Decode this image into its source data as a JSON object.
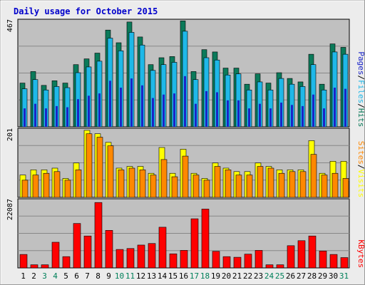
{
  "chart_data": {
    "type": "bar",
    "title": "Daily usage for October 2015",
    "categories": [
      "1",
      "2",
      "3",
      "4",
      "5",
      "6",
      "7",
      "8",
      "9",
      "10",
      "11",
      "12",
      "13",
      "14",
      "15",
      "16",
      "17",
      "18",
      "19",
      "20",
      "21",
      "22",
      "23",
      "24",
      "25",
      "26",
      "27",
      "28",
      "29",
      "30",
      "31"
    ],
    "weekend_days": [
      "3",
      "4",
      "10",
      "11",
      "17",
      "18",
      "24",
      "25",
      "31"
    ],
    "panels": [
      {
        "id": "top",
        "ymax_label": "467",
        "ylim": [
          0,
          467
        ],
        "legend": [
          "Pages",
          "/",
          "Files",
          "/",
          "Hits"
        ],
        "series": [
          {
            "name": "Hits",
            "color": "#0b7a5a",
            "values": [
              190,
              240,
              180,
              200,
              190,
              270,
              295,
              320,
              420,
              365,
              455,
              390,
              270,
              300,
              305,
              460,
              240,
              335,
              325,
              255,
              255,
              185,
              230,
              190,
              235,
              210,
              195,
              315,
              185,
              360,
              345
            ]
          },
          {
            "name": "Files",
            "color": "#1fb8e8",
            "values": [
              165,
              205,
              160,
              175,
              170,
              235,
              260,
              285,
              385,
              330,
              410,
              355,
              245,
              270,
              280,
              415,
              205,
              300,
              290,
              225,
              230,
              160,
              195,
              160,
              210,
              185,
              175,
              270,
              160,
              325,
              315
            ]
          },
          {
            "name": "Pages",
            "color": "#1a24c8",
            "values": [
              80,
              100,
              80,
              90,
              85,
              120,
              135,
              145,
              200,
              170,
              210,
              180,
              125,
              140,
              145,
              220,
              100,
              155,
              150,
              115,
              115,
              80,
              100,
              80,
              105,
              95,
              90,
              140,
              80,
              170,
              165
            ]
          }
        ]
      },
      {
        "id": "mid",
        "ymax_label": "201",
        "ylim": [
          0,
          201
        ],
        "legend": [
          "Sites",
          "/",
          "Visits"
        ],
        "series": [
          {
            "name": "Visits",
            "color": "#ffff00",
            "values": [
              65,
              80,
              80,
              85,
              55,
              100,
              195,
              185,
              160,
              85,
              90,
              90,
              70,
              145,
              70,
              140,
              70,
              55,
              100,
              85,
              75,
              75,
              100,
              90,
              80,
              80,
              80,
              165,
              70,
              105,
              105
            ]
          },
          {
            "name": "Sites",
            "color": "#ff8800",
            "values": [
              50,
              65,
              70,
              75,
              50,
              80,
              185,
              175,
              150,
              80,
              85,
              80,
              65,
              110,
              60,
              120,
              65,
              50,
              90,
              80,
              65,
              65,
              90,
              85,
              70,
              75,
              75,
              125,
              65,
              70,
              55
            ]
          }
        ]
      },
      {
        "id": "bot",
        "ymax_label": "22087",
        "ylim": [
          0,
          22087
        ],
        "legend": [
          "KBytes"
        ],
        "series": [
          {
            "name": "KBytes",
            "color": "#ff0000",
            "values": [
              4300,
              1000,
              1000,
              8200,
              3600,
              14200,
              10200,
              20900,
              12000,
              5900,
              6200,
              7300,
              7800,
              13000,
              4500,
              5600,
              15700,
              18800,
              5300,
              3600,
              3400,
              4400,
              5600,
              1000,
              1000,
              7100,
              8700,
              10200,
              5400,
              4300,
              3300
            ]
          }
        ]
      }
    ]
  }
}
